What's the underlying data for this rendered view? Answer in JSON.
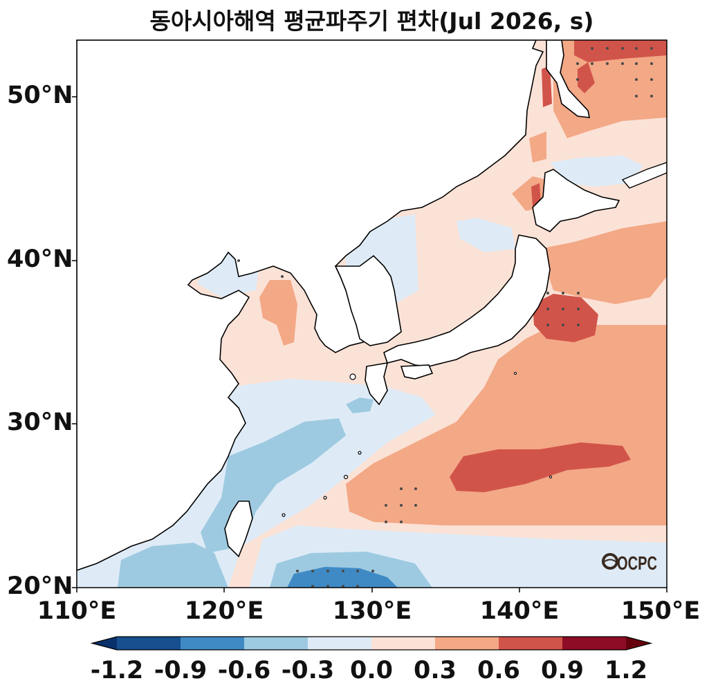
{
  "title": "동아시아해역 평균파주기 편차(Jul 2026, s)",
  "map": {
    "lat_labels": [
      "50°N",
      "40°N",
      "30°N",
      "20°N"
    ],
    "lon_labels": [
      "110°E",
      "120°E",
      "130°E",
      "140°E",
      "150°E"
    ],
    "extent": {
      "lon": [
        110,
        150
      ],
      "lat": [
        20,
        53.5
      ]
    },
    "logo_text": "OCPC"
  },
  "colorbar": {
    "ticks": [
      "-1.2",
      "-0.9",
      "-0.6",
      "-0.3",
      "0.0",
      "0.3",
      "0.6",
      "0.9",
      "1.2"
    ],
    "colors": [
      "#08306b",
      "#174f8f",
      "#3f8ac4",
      "#9ecae1",
      "#deebf7",
      "#fbe2d6",
      "#f3a886",
      "#d1544a",
      "#8e0c26",
      "#67000d"
    ]
  }
}
